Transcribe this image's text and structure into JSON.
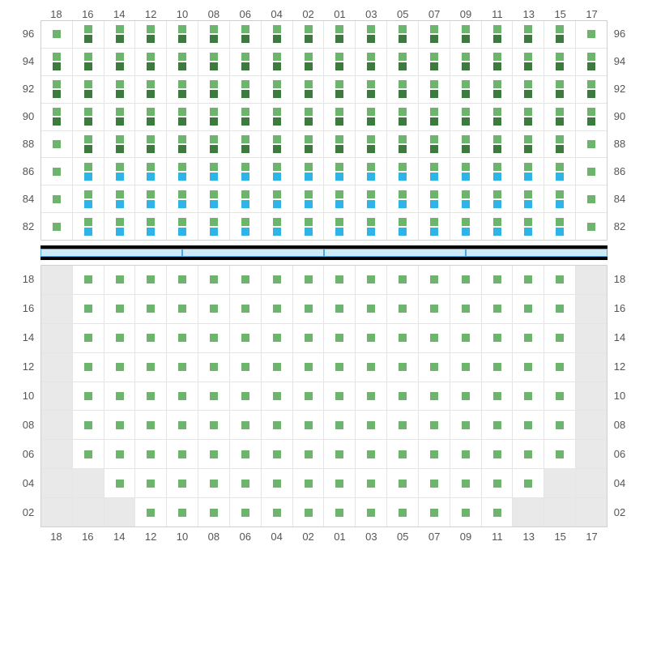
{
  "columns": [
    "18",
    "16",
    "14",
    "12",
    "10",
    "08",
    "06",
    "04",
    "02",
    "01",
    "03",
    "05",
    "07",
    "09",
    "11",
    "13",
    "15",
    "17"
  ],
  "upper": {
    "rows": [
      "96",
      "94",
      "92",
      "90",
      "88",
      "86",
      "84",
      "82"
    ],
    "cells": [
      [
        [
          "l"
        ],
        [
          "l",
          "d"
        ],
        [
          "l",
          "d"
        ],
        [
          "l",
          "d"
        ],
        [
          "l",
          "d"
        ],
        [
          "l",
          "d"
        ],
        [
          "l",
          "d"
        ],
        [
          "l",
          "d"
        ],
        [
          "l",
          "d"
        ],
        [
          "l",
          "d"
        ],
        [
          "l",
          "d"
        ],
        [
          "l",
          "d"
        ],
        [
          "l",
          "d"
        ],
        [
          "l",
          "d"
        ],
        [
          "l",
          "d"
        ],
        [
          "l",
          "d"
        ],
        [
          "l",
          "d"
        ],
        [
          "l"
        ]
      ],
      [
        [
          "l",
          "d"
        ],
        [
          "l",
          "d"
        ],
        [
          "l",
          "d"
        ],
        [
          "l",
          "d"
        ],
        [
          "l",
          "d"
        ],
        [
          "l",
          "d"
        ],
        [
          "l",
          "d"
        ],
        [
          "l",
          "d"
        ],
        [
          "l",
          "d"
        ],
        [
          "l",
          "d"
        ],
        [
          "l",
          "d"
        ],
        [
          "l",
          "d"
        ],
        [
          "l",
          "d"
        ],
        [
          "l",
          "d"
        ],
        [
          "l",
          "d"
        ],
        [
          "l",
          "d"
        ],
        [
          "l",
          "d"
        ],
        [
          "l",
          "d"
        ]
      ],
      [
        [
          "l",
          "d"
        ],
        [
          "l",
          "d"
        ],
        [
          "l",
          "d"
        ],
        [
          "l",
          "d"
        ],
        [
          "l",
          "d"
        ],
        [
          "l",
          "d"
        ],
        [
          "l",
          "d"
        ],
        [
          "l",
          "d"
        ],
        [
          "l",
          "d"
        ],
        [
          "l",
          "d"
        ],
        [
          "l",
          "d"
        ],
        [
          "l",
          "d"
        ],
        [
          "l",
          "d"
        ],
        [
          "l",
          "d"
        ],
        [
          "l",
          "d"
        ],
        [
          "l",
          "d"
        ],
        [
          "l",
          "d"
        ],
        [
          "l",
          "d"
        ]
      ],
      [
        [
          "l",
          "d"
        ],
        [
          "l",
          "d"
        ],
        [
          "l",
          "d"
        ],
        [
          "l",
          "d"
        ],
        [
          "l",
          "d"
        ],
        [
          "l",
          "d"
        ],
        [
          "l",
          "d"
        ],
        [
          "l",
          "d"
        ],
        [
          "l",
          "d"
        ],
        [
          "l",
          "d"
        ],
        [
          "l",
          "d"
        ],
        [
          "l",
          "d"
        ],
        [
          "l",
          "d"
        ],
        [
          "l",
          "d"
        ],
        [
          "l",
          "d"
        ],
        [
          "l",
          "d"
        ],
        [
          "l",
          "d"
        ],
        [
          "l",
          "d"
        ]
      ],
      [
        [
          "l"
        ],
        [
          "l",
          "d"
        ],
        [
          "l",
          "d"
        ],
        [
          "l",
          "d"
        ],
        [
          "l",
          "d"
        ],
        [
          "l",
          "d"
        ],
        [
          "l",
          "d"
        ],
        [
          "l",
          "d"
        ],
        [
          "l",
          "d"
        ],
        [
          "l",
          "d"
        ],
        [
          "l",
          "d"
        ],
        [
          "l",
          "d"
        ],
        [
          "l",
          "d"
        ],
        [
          "l",
          "d"
        ],
        [
          "l",
          "d"
        ],
        [
          "l",
          "d"
        ],
        [
          "l",
          "d"
        ],
        [
          "l"
        ]
      ],
      [
        [
          "l"
        ],
        [
          "l",
          "b"
        ],
        [
          "l",
          "b"
        ],
        [
          "l",
          "b"
        ],
        [
          "l",
          "b"
        ],
        [
          "l",
          "b"
        ],
        [
          "l",
          "b"
        ],
        [
          "l",
          "b"
        ],
        [
          "l",
          "b"
        ],
        [
          "l",
          "b"
        ],
        [
          "l",
          "b"
        ],
        [
          "l",
          "b"
        ],
        [
          "l",
          "b"
        ],
        [
          "l",
          "b"
        ],
        [
          "l",
          "b"
        ],
        [
          "l",
          "b"
        ],
        [
          "l",
          "b"
        ],
        [
          "l"
        ]
      ],
      [
        [
          "l"
        ],
        [
          "l",
          "b"
        ],
        [
          "l",
          "b"
        ],
        [
          "l",
          "b"
        ],
        [
          "l",
          "b"
        ],
        [
          "l",
          "b"
        ],
        [
          "l",
          "b"
        ],
        [
          "l",
          "b"
        ],
        [
          "l",
          "b"
        ],
        [
          "l",
          "b"
        ],
        [
          "l",
          "b"
        ],
        [
          "l",
          "b"
        ],
        [
          "l",
          "b"
        ],
        [
          "l",
          "b"
        ],
        [
          "l",
          "b"
        ],
        [
          "l",
          "b"
        ],
        [
          "l",
          "b"
        ],
        [
          "l"
        ]
      ],
      [
        [
          "l"
        ],
        [
          "l",
          "b"
        ],
        [
          "l",
          "b"
        ],
        [
          "l",
          "b"
        ],
        [
          "l",
          "b"
        ],
        [
          "l",
          "b"
        ],
        [
          "l",
          "b"
        ],
        [
          "l",
          "b"
        ],
        [
          "l",
          "b"
        ],
        [
          "l",
          "b"
        ],
        [
          "l",
          "b"
        ],
        [
          "l",
          "b"
        ],
        [
          "l",
          "b"
        ],
        [
          "l",
          "b"
        ],
        [
          "l",
          "b"
        ],
        [
          "l",
          "b"
        ],
        [
          "l",
          "b"
        ],
        [
          "l"
        ]
      ]
    ]
  },
  "lower": {
    "rows": [
      "18",
      "16",
      "14",
      "12",
      "10",
      "08",
      "06",
      "04",
      "02"
    ],
    "cells": [
      [
        [
          "g"
        ],
        [
          "l"
        ],
        [
          "l"
        ],
        [
          "l"
        ],
        [
          "l"
        ],
        [
          "l"
        ],
        [
          "l"
        ],
        [
          "l"
        ],
        [
          "l"
        ],
        [
          "l"
        ],
        [
          "l"
        ],
        [
          "l"
        ],
        [
          "l"
        ],
        [
          "l"
        ],
        [
          "l"
        ],
        [
          "l"
        ],
        [
          "l"
        ],
        [
          "g"
        ]
      ],
      [
        [
          "g"
        ],
        [
          "l"
        ],
        [
          "l"
        ],
        [
          "l"
        ],
        [
          "l"
        ],
        [
          "l"
        ],
        [
          "l"
        ],
        [
          "l"
        ],
        [
          "l"
        ],
        [
          "l"
        ],
        [
          "l"
        ],
        [
          "l"
        ],
        [
          "l"
        ],
        [
          "l"
        ],
        [
          "l"
        ],
        [
          "l"
        ],
        [
          "l"
        ],
        [
          "g"
        ]
      ],
      [
        [
          "g"
        ],
        [
          "l"
        ],
        [
          "l"
        ],
        [
          "l"
        ],
        [
          "l"
        ],
        [
          "l"
        ],
        [
          "l"
        ],
        [
          "l"
        ],
        [
          "l"
        ],
        [
          "l"
        ],
        [
          "l"
        ],
        [
          "l"
        ],
        [
          "l"
        ],
        [
          "l"
        ],
        [
          "l"
        ],
        [
          "l"
        ],
        [
          "l"
        ],
        [
          "g"
        ]
      ],
      [
        [
          "g"
        ],
        [
          "l"
        ],
        [
          "l"
        ],
        [
          "l"
        ],
        [
          "l"
        ],
        [
          "l"
        ],
        [
          "l"
        ],
        [
          "l"
        ],
        [
          "l"
        ],
        [
          "l"
        ],
        [
          "l"
        ],
        [
          "l"
        ],
        [
          "l"
        ],
        [
          "l"
        ],
        [
          "l"
        ],
        [
          "l"
        ],
        [
          "l"
        ],
        [
          "g"
        ]
      ],
      [
        [
          "g"
        ],
        [
          "l"
        ],
        [
          "l"
        ],
        [
          "l"
        ],
        [
          "l"
        ],
        [
          "l"
        ],
        [
          "l"
        ],
        [
          "l"
        ],
        [
          "l"
        ],
        [
          "l"
        ],
        [
          "l"
        ],
        [
          "l"
        ],
        [
          "l"
        ],
        [
          "l"
        ],
        [
          "l"
        ],
        [
          "l"
        ],
        [
          "l"
        ],
        [
          "g"
        ]
      ],
      [
        [
          "g"
        ],
        [
          "l"
        ],
        [
          "l"
        ],
        [
          "l"
        ],
        [
          "l"
        ],
        [
          "l"
        ],
        [
          "l"
        ],
        [
          "l"
        ],
        [
          "l"
        ],
        [
          "l"
        ],
        [
          "l"
        ],
        [
          "l"
        ],
        [
          "l"
        ],
        [
          "l"
        ],
        [
          "l"
        ],
        [
          "l"
        ],
        [
          "l"
        ],
        [
          "g"
        ]
      ],
      [
        [
          "g"
        ],
        [
          "l"
        ],
        [
          "l"
        ],
        [
          "l"
        ],
        [
          "l"
        ],
        [
          "l"
        ],
        [
          "l"
        ],
        [
          "l"
        ],
        [
          "l"
        ],
        [
          "l"
        ],
        [
          "l"
        ],
        [
          "l"
        ],
        [
          "l"
        ],
        [
          "l"
        ],
        [
          "l"
        ],
        [
          "l"
        ],
        [
          "l"
        ],
        [
          "g"
        ]
      ],
      [
        [
          "g"
        ],
        [
          "g"
        ],
        [
          "l"
        ],
        [
          "l"
        ],
        [
          "l"
        ],
        [
          "l"
        ],
        [
          "l"
        ],
        [
          "l"
        ],
        [
          "l"
        ],
        [
          "l"
        ],
        [
          "l"
        ],
        [
          "l"
        ],
        [
          "l"
        ],
        [
          "l"
        ],
        [
          "l"
        ],
        [
          "l"
        ],
        [
          "g"
        ],
        [
          "g"
        ]
      ],
      [
        [
          "g"
        ],
        [
          "g"
        ],
        [
          "g"
        ],
        [
          "l"
        ],
        [
          "l"
        ],
        [
          "l"
        ],
        [
          "l"
        ],
        [
          "l"
        ],
        [
          "l"
        ],
        [
          "l"
        ],
        [
          "l"
        ],
        [
          "l"
        ],
        [
          "l"
        ],
        [
          "l"
        ],
        [
          "l"
        ],
        [
          "g"
        ],
        [
          "g"
        ],
        [
          "g"
        ]
      ]
    ]
  },
  "colors": {
    "light_green": "#6db56d",
    "dark_green": "#3d7a3d",
    "blue": "#2fb4e8",
    "grey": "#e9e9e9",
    "grid_line": "#e5e5e5",
    "border": "#d0d0d0",
    "stage_fill": "#cdeaf7",
    "stage_border": "#4fa8d8",
    "stage_bg": "#000000"
  },
  "stage_segments": 4
}
